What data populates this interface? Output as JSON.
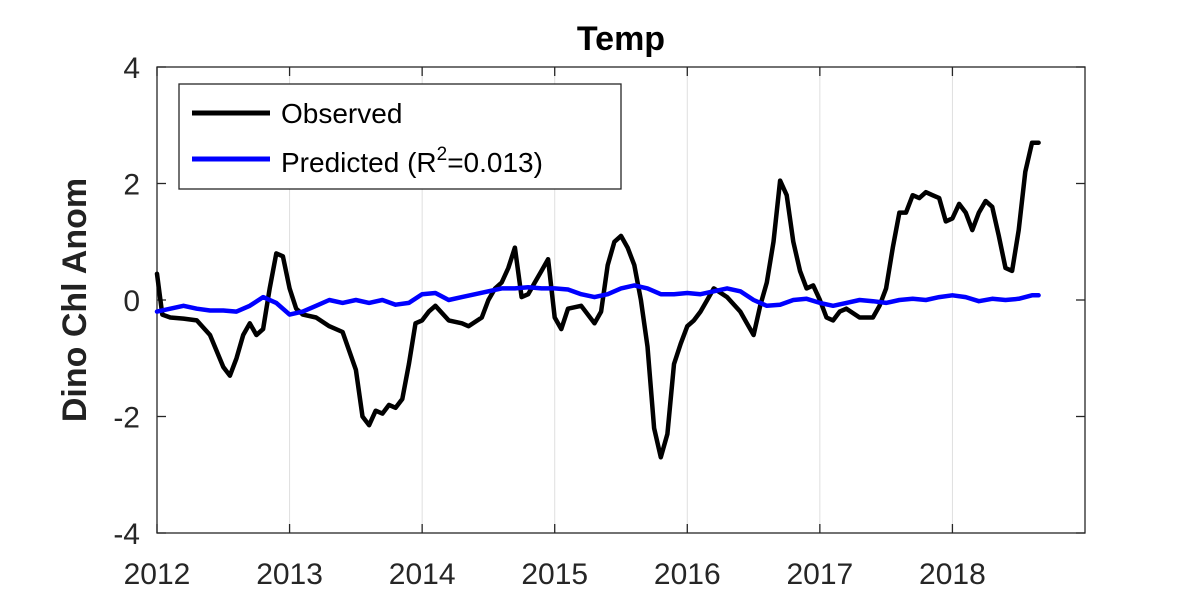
{
  "chart_data": {
    "type": "line",
    "title": "Temp",
    "xlabel": "",
    "ylabel": "Dino Chl Anom",
    "xlim": [
      2012,
      2019
    ],
    "ylim": [
      -4,
      4
    ],
    "xticks": [
      "2012",
      "2013",
      "2014",
      "2015",
      "2016",
      "2017",
      "2018"
    ],
    "yticks": [
      "4",
      "2",
      "0",
      "-2",
      "-4"
    ],
    "grid": "vertical",
    "legend_position": "top-left",
    "legend": {
      "observed": "Observed",
      "predicted_prefix": "Predicted (R",
      "predicted_sup": "2",
      "predicted_suffix": "=0.013)"
    },
    "series": [
      {
        "name": "Observed",
        "color": "#000000",
        "x": [
          2012.0,
          2012.04,
          2012.1,
          2012.2,
          2012.3,
          2012.4,
          2012.5,
          2012.55,
          2012.6,
          2012.65,
          2012.7,
          2012.75,
          2012.8,
          2012.85,
          2012.9,
          2012.95,
          2013.0,
          2013.05,
          2013.1,
          2013.2,
          2013.3,
          2013.4,
          2013.5,
          2013.55,
          2013.6,
          2013.65,
          2013.7,
          2013.75,
          2013.8,
          2013.85,
          2013.9,
          2013.95,
          2014.0,
          2014.05,
          2014.1,
          2014.2,
          2014.3,
          2014.35,
          2014.45,
          2014.5,
          2014.55,
          2014.6,
          2014.65,
          2014.7,
          2014.75,
          2014.8,
          2014.85,
          2014.9,
          2014.95,
          2015.0,
          2015.05,
          2015.1,
          2015.2,
          2015.3,
          2015.35,
          2015.4,
          2015.45,
          2015.5,
          2015.55,
          2015.6,
          2015.65,
          2015.7,
          2015.75,
          2015.8,
          2015.85,
          2015.9,
          2015.95,
          2016.0,
          2016.05,
          2016.1,
          2016.15,
          2016.2,
          2016.3,
          2016.4,
          2016.45,
          2016.5,
          2016.55,
          2016.6,
          2016.65,
          2016.7,
          2016.75,
          2016.8,
          2016.85,
          2016.9,
          2016.95,
          2017.0,
          2017.05,
          2017.1,
          2017.15,
          2017.2,
          2017.3,
          2017.4,
          2017.45,
          2017.5,
          2017.55,
          2017.6,
          2017.65,
          2017.7,
          2017.75,
          2017.8,
          2017.85,
          2017.9,
          2017.95,
          2018.0,
          2018.05,
          2018.1,
          2018.15,
          2018.2,
          2018.25,
          2018.3,
          2018.35,
          2018.4,
          2018.45,
          2018.5,
          2018.55,
          2018.6,
          2018.65
        ],
        "values": [
          0.45,
          -0.25,
          -0.3,
          -0.32,
          -0.35,
          -0.6,
          -1.15,
          -1.3,
          -1.0,
          -0.6,
          -0.4,
          -0.6,
          -0.5,
          0.2,
          0.8,
          0.75,
          0.2,
          -0.15,
          -0.25,
          -0.3,
          -0.45,
          -0.55,
          -1.2,
          -2.0,
          -2.15,
          -1.9,
          -1.95,
          -1.8,
          -1.85,
          -1.7,
          -1.1,
          -0.4,
          -0.35,
          -0.2,
          -0.1,
          -0.35,
          -0.4,
          -0.45,
          -0.3,
          0.0,
          0.2,
          0.3,
          0.55,
          0.9,
          0.05,
          0.1,
          0.3,
          0.5,
          0.7,
          -0.3,
          -0.5,
          -0.15,
          -0.1,
          -0.4,
          -0.2,
          0.6,
          1.0,
          1.1,
          0.9,
          0.6,
          0.0,
          -0.8,
          -2.2,
          -2.7,
          -2.3,
          -1.1,
          -0.75,
          -0.45,
          -0.35,
          -0.2,
          0.0,
          0.2,
          0.05,
          -0.2,
          -0.4,
          -0.6,
          -0.1,
          0.3,
          1.0,
          2.05,
          1.8,
          1.0,
          0.5,
          0.2,
          0.25,
          0.0,
          -0.3,
          -0.35,
          -0.2,
          -0.15,
          -0.3,
          -0.3,
          -0.1,
          0.2,
          0.9,
          1.5,
          1.5,
          1.8,
          1.75,
          1.85,
          1.8,
          1.75,
          1.35,
          1.4,
          1.65,
          1.5,
          1.2,
          1.5,
          1.7,
          1.6,
          1.1,
          0.55,
          0.5,
          1.2,
          2.2,
          2.7,
          2.7
        ]
      },
      {
        "name": "Predicted (R2=0.013)",
        "color": "#0000ff",
        "x": [
          2012.0,
          2012.1,
          2012.2,
          2012.3,
          2012.4,
          2012.5,
          2012.6,
          2012.7,
          2012.8,
          2012.9,
          2013.0,
          2013.1,
          2013.2,
          2013.3,
          2013.4,
          2013.5,
          2013.6,
          2013.7,
          2013.8,
          2013.9,
          2014.0,
          2014.1,
          2014.2,
          2014.3,
          2014.4,
          2014.5,
          2014.6,
          2014.7,
          2014.8,
          2014.9,
          2015.0,
          2015.1,
          2015.2,
          2015.3,
          2015.4,
          2015.5,
          2015.6,
          2015.7,
          2015.8,
          2015.9,
          2016.0,
          2016.1,
          2016.2,
          2016.3,
          2016.4,
          2016.5,
          2016.6,
          2016.7,
          2016.8,
          2016.9,
          2017.0,
          2017.1,
          2017.2,
          2017.3,
          2017.4,
          2017.5,
          2017.6,
          2017.7,
          2017.8,
          2017.9,
          2018.0,
          2018.1,
          2018.2,
          2018.3,
          2018.4,
          2018.5,
          2018.6,
          2018.65
        ],
        "values": [
          -0.2,
          -0.15,
          -0.1,
          -0.15,
          -0.18,
          -0.18,
          -0.2,
          -0.1,
          0.05,
          -0.05,
          -0.25,
          -0.2,
          -0.1,
          0.0,
          -0.05,
          0.0,
          -0.05,
          0.0,
          -0.08,
          -0.05,
          0.1,
          0.12,
          0.0,
          0.05,
          0.1,
          0.15,
          0.2,
          0.2,
          0.22,
          0.2,
          0.2,
          0.18,
          0.1,
          0.05,
          0.1,
          0.2,
          0.25,
          0.2,
          0.1,
          0.1,
          0.12,
          0.1,
          0.15,
          0.2,
          0.15,
          0.0,
          -0.1,
          -0.08,
          0.0,
          0.02,
          -0.05,
          -0.1,
          -0.05,
          0.0,
          -0.02,
          -0.05,
          0.0,
          0.02,
          0.0,
          0.05,
          0.08,
          0.05,
          -0.02,
          0.02,
          0.0,
          0.02,
          0.08,
          0.08
        ]
      }
    ]
  }
}
